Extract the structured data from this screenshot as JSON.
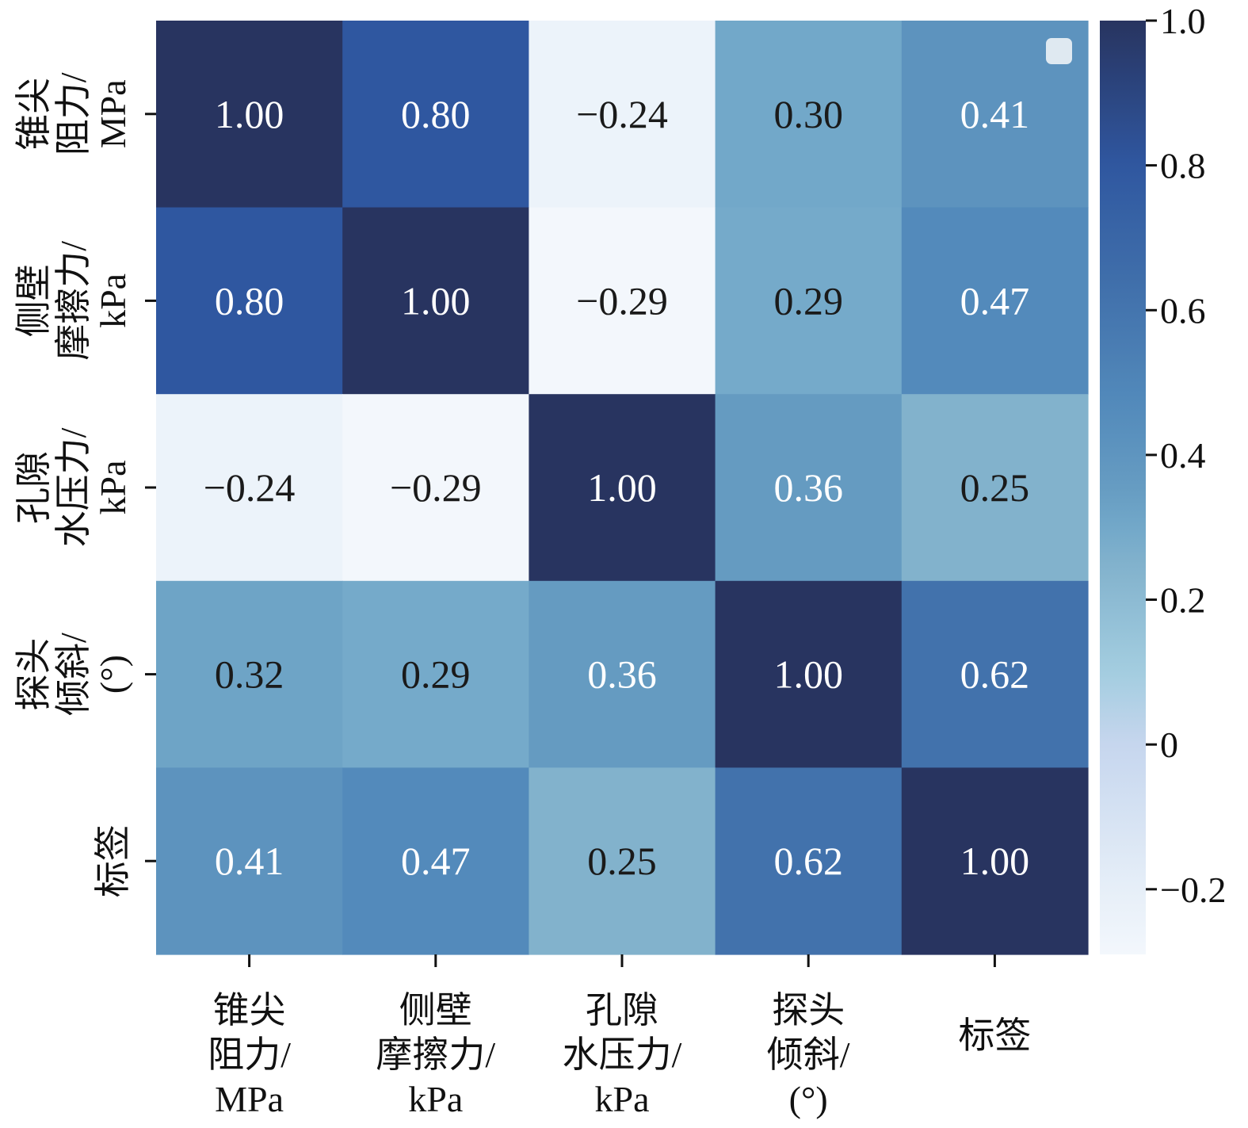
{
  "chart_data": {
    "type": "heatmap",
    "title": "",
    "xlabel": "",
    "ylabel": "",
    "row_labels": [
      [
        "锥尖",
        "阻力/",
        "MPa"
      ],
      [
        "侧壁",
        "摩擦力/",
        "kPa"
      ],
      [
        "孔隙",
        "水压力/",
        "kPa"
      ],
      [
        "探头",
        "倾斜/",
        "(°)"
      ],
      [
        "标签"
      ]
    ],
    "col_labels": [
      [
        "锥尖",
        "阻力/",
        "MPa"
      ],
      [
        "侧壁",
        "摩擦力/",
        "kPa"
      ],
      [
        "孔隙",
        "水压力/",
        "kPa"
      ],
      [
        "探头",
        "倾斜/",
        "(°)"
      ],
      [
        "标签"
      ]
    ],
    "values": [
      [
        1.0,
        0.8,
        -0.24,
        0.3,
        0.41
      ],
      [
        0.8,
        1.0,
        -0.29,
        0.29,
        0.47
      ],
      [
        -0.24,
        -0.29,
        1.0,
        0.36,
        0.25
      ],
      [
        0.32,
        0.29,
        0.36,
        1.0,
        0.62
      ],
      [
        0.41,
        0.47,
        0.25,
        0.62,
        1.0
      ]
    ],
    "value_labels": [
      [
        "1.00",
        "0.80",
        "−0.24",
        "0.30",
        "0.41"
      ],
      [
        "0.80",
        "1.00",
        "−0.29",
        "0.29",
        "0.47"
      ],
      [
        "−0.24",
        "−0.29",
        "1.00",
        "0.36",
        "0.25"
      ],
      [
        "0.32",
        "0.29",
        "0.36",
        "1.00",
        "0.62"
      ],
      [
        "0.41",
        "0.47",
        "0.25",
        "0.62",
        "1.00"
      ]
    ],
    "colormap": "Blues",
    "colormap_stops": [
      {
        "v": -0.29,
        "color": "#f3f7fc"
      },
      {
        "v": -0.2,
        "color": "#e6eff8"
      },
      {
        "v": 0.0,
        "color": "#c6d6ee"
      },
      {
        "v": 0.1,
        "color": "#a3cde0"
      },
      {
        "v": 0.25,
        "color": "#82b2cc"
      },
      {
        "v": 0.3,
        "color": "#72a8c9"
      },
      {
        "v": 0.36,
        "color": "#659bc1"
      },
      {
        "v": 0.47,
        "color": "#538abb"
      },
      {
        "v": 0.62,
        "color": "#4272ac"
      },
      {
        "v": 0.8,
        "color": "#2f57a0"
      },
      {
        "v": 1.0,
        "color": "#283460"
      }
    ],
    "colorbar": {
      "range": [
        -0.29,
        1.0
      ],
      "ticks": [
        1.0,
        0.8,
        0.6,
        0.4,
        0.2,
        0.0,
        -0.2
      ],
      "tick_labels": [
        "1.0",
        "0.8",
        "0.6",
        "0.4",
        "0.2",
        "0",
        "−0.2"
      ],
      "placement": "right"
    },
    "annotation_text_threshold": 0.35,
    "text_colors": {
      "light": "#ffffff",
      "dark": "#1a1a1a"
    },
    "legend": {
      "placement": "top-right",
      "entries": []
    }
  }
}
